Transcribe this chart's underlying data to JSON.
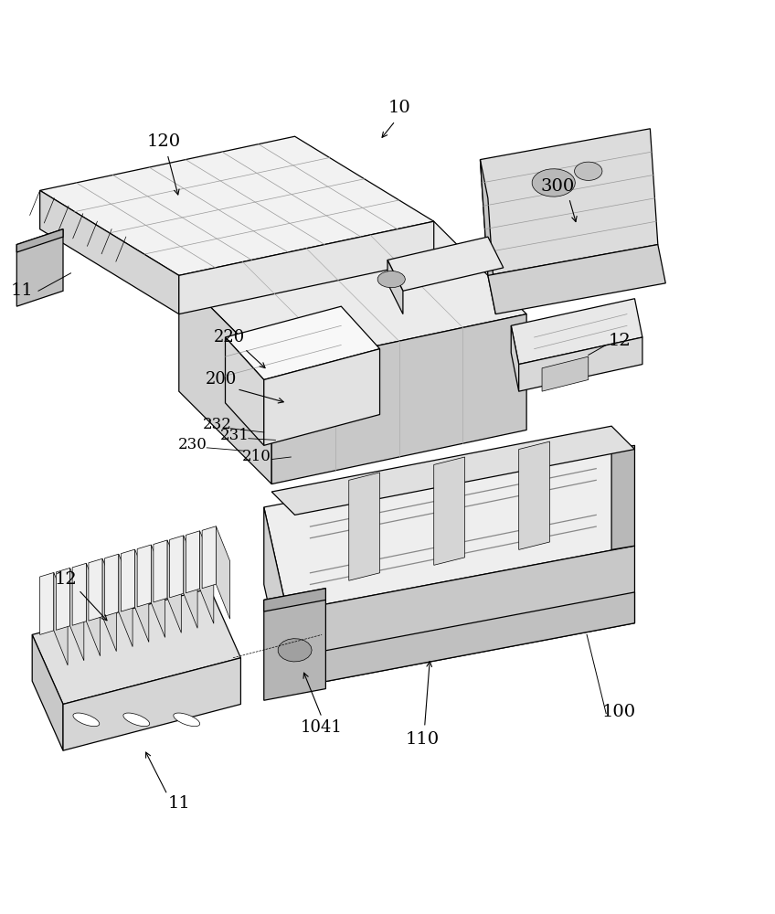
{
  "background_color": "#ffffff",
  "line_color": "#000000",
  "figure_width": 8.48,
  "figure_height": 10.0,
  "dpi": 100
}
